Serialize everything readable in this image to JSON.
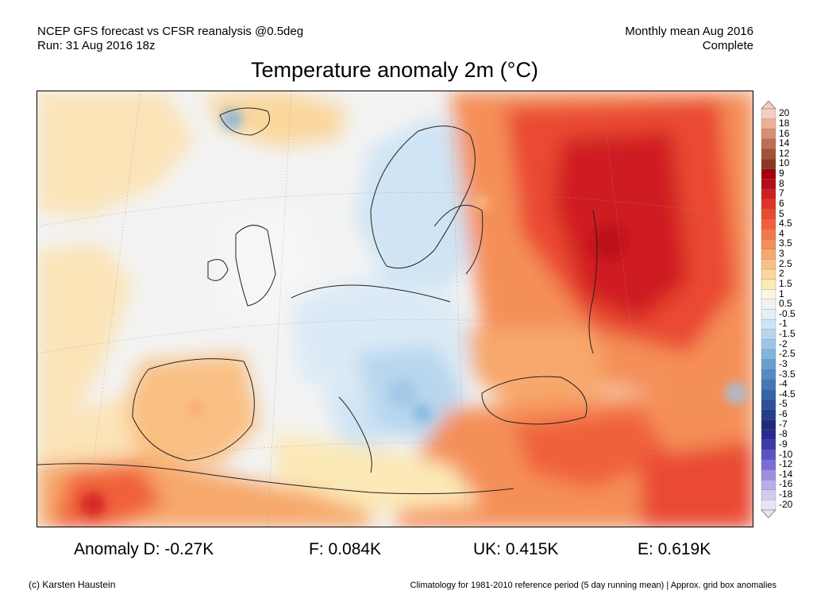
{
  "header": {
    "line1_left": "NCEP GFS forecast vs CFSR reanalysis @0.5deg",
    "line2_left": "Run: 31 Aug 2016 18z",
    "line1_right": "Monthly mean Aug 2016",
    "line2_right": "Complete"
  },
  "title": "Temperature anomaly 2m (°C)",
  "colorbar": {
    "levels": [
      "20",
      "18",
      "16",
      "14",
      "12",
      "10",
      "9",
      "8",
      "7",
      "6",
      "5",
      "4.5",
      "4",
      "3.5",
      "3",
      "2.5",
      "2",
      "1.5",
      "1",
      "0.5",
      "-0.5",
      "-1",
      "-1.5",
      "-2",
      "-2.5",
      "-3",
      "-3.5",
      "-4",
      "-4.5",
      "-5",
      "-6",
      "-7",
      "-8",
      "-9",
      "-10",
      "-12",
      "-14",
      "-16",
      "-18",
      "-20"
    ],
    "colors": [
      "#f4cdbf",
      "#eab098",
      "#d88e72",
      "#c06d50",
      "#a55034",
      "#8a3a22",
      "#a00010",
      "#b80c18",
      "#cf1f22",
      "#e0342a",
      "#ea4a30",
      "#f0603a",
      "#f47848",
      "#f58f58",
      "#f7a86c",
      "#f9c083",
      "#fad79c",
      "#fbe9b6",
      "#fdf6dc",
      "#f2f2f2",
      "#e3eff9",
      "#cfe4f4",
      "#b7d6ee",
      "#9dc6e6",
      "#82b4dc",
      "#689fd0",
      "#548bc4",
      "#4477b6",
      "#3664a8",
      "#2c519a",
      "#243e8a",
      "#1f2c7a",
      "#2a2a8e",
      "#3e3aa8",
      "#5a52c0",
      "#7a70d2",
      "#9c90e0",
      "#b8aeea",
      "#d2cbf2",
      "#e8e4f8"
    ]
  },
  "stats": {
    "anomaly_d": "Anomaly D: -0.27K",
    "f": "F: 0.084K",
    "uk": "UK: 0.415K",
    "e": "E: 0.619K"
  },
  "footer": {
    "left": "(c) Karsten Haustein",
    "right": "Climatology for 1981-2010 reference period (5 day running mean) | Approx. grid box anomalies"
  }
}
